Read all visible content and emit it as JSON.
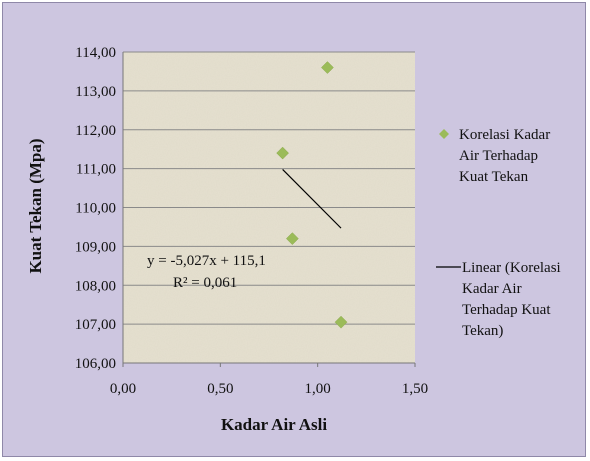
{
  "chart_data": {
    "type": "scatter",
    "xlabel": "Kadar Air Asli",
    "ylabel": "Kuat  Tekan (Mpa)",
    "xlim": [
      0,
      1.5
    ],
    "ylim": [
      106,
      114
    ],
    "x_ticks": [
      0,
      0.5,
      1,
      1.5
    ],
    "y_ticks": [
      106,
      107,
      108,
      109,
      110,
      111,
      112,
      113,
      114
    ],
    "x_tick_labels": [
      "0,00",
      "0,50",
      "1,00",
      "1,50"
    ],
    "y_tick_labels": [
      "106,00",
      "107,00",
      "108,00",
      "109,00",
      "110,00",
      "111,00",
      "112,00",
      "113,00",
      "114,00"
    ],
    "grid": "horizontal",
    "legend_position": "right",
    "series": [
      {
        "name": "Korelasi Kadar Air Terhadap Kuat Tekan",
        "legend_lines": [
          "Korelasi Kadar",
          "Air Terhadap",
          "Kuat Tekan"
        ],
        "marker": "diamond",
        "color": "#9bbb59",
        "points": [
          {
            "x": 0.82,
            "y": 111.4
          },
          {
            "x": 0.87,
            "y": 109.2
          },
          {
            "x": 1.05,
            "y": 113.6
          },
          {
            "x": 1.12,
            "y": 107.05
          }
        ]
      },
      {
        "name": "Linear (Korelasi Kadar Air Terhadap Kuat Tekan)",
        "legend_lines": [
          "Linear (Korelasi",
          "Kadar Air",
          "Terhadap Kuat",
          "Tekan)"
        ],
        "type": "trendline",
        "color": "#000000",
        "x_range": [
          0.82,
          1.12
        ],
        "slope": -5.027,
        "intercept": 115.1
      }
    ],
    "annotations": {
      "equation": "y = -5,027x + 115,1",
      "r_squared": "R² = 0,061"
    }
  },
  "colors": {
    "background": "#cdc6e0",
    "plot_area": "#e6e1d0",
    "gridline": "#8a8a8a",
    "marker": "#9bbb59"
  }
}
